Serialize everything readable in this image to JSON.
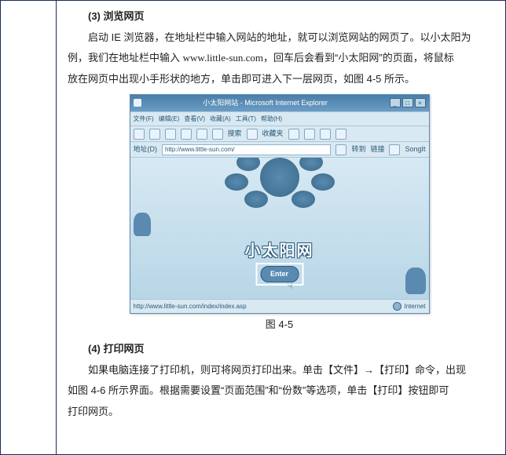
{
  "section1": {
    "num": "(3)",
    "title": "浏览网页"
  },
  "para1_a": "启动 IE 浏览器，在地址栏中输入网站的地址，就可以浏览网站的网页了。以小太阳为",
  "para1_b": "例，我们在地址栏中输入 ",
  "url": "www.little-sun.com",
  "para1_c": "，回车后会看到“小太阳网”的页面，将鼠标",
  "para1_d": "放在网页中出现小手形状的地方，单击即可进入下一层网页，如图 4-5 所示。",
  "caption": "图 4-5",
  "section2": {
    "num": "(4)",
    "title": "打印网页"
  },
  "para2_a": "如果电脑连接了打印机，则可将网页打印出来。单击【文件】→【打印】命令，出现",
  "para2_b": "如图 4-6 所示界面。根据需要设置“页面范围”和“份数”等选项，单击【打印】按钮即可",
  "para2_c": "打印网页。",
  "ie": {
    "title": "小太阳网站 - Microsoft Internet Explorer",
    "menus": [
      "文件(F)",
      "编辑(E)",
      "查看(V)",
      "收藏(A)",
      "工具(T)",
      "帮助(H)"
    ],
    "addr_label": "地址(D)",
    "addr": "http://www.little-sun.com/",
    "links_label": "链接",
    "go": "转到",
    "search": "搜索",
    "fav": "收藏夹",
    "songit": "SongIt",
    "logo": "小太阳网",
    "enter": "Enter",
    "status_url": "http://www.little-sun.com/index/index.asp",
    "status_zone": "Internet",
    "btn_min": "_",
    "btn_max": "□",
    "btn_close": "×"
  }
}
